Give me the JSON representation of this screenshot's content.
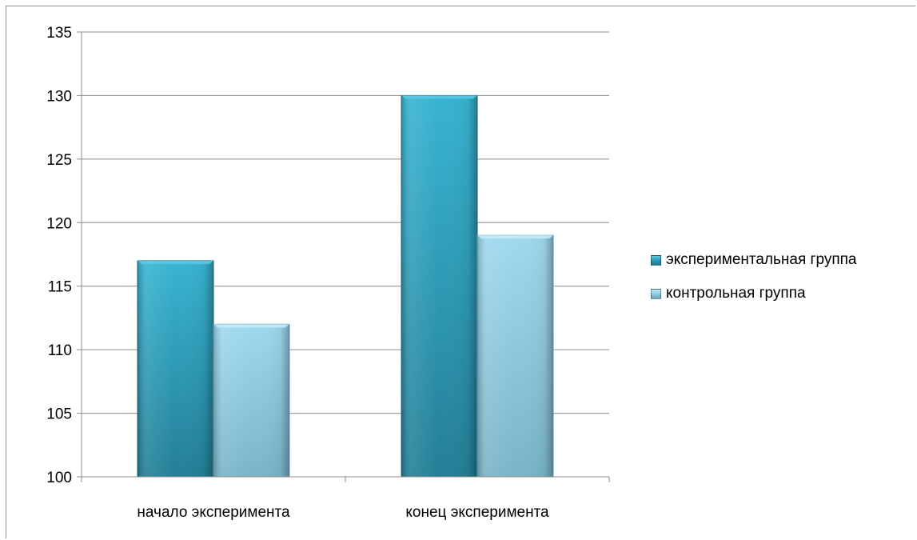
{
  "chart_data": {
    "type": "bar",
    "categories": [
      "начало эксперимента",
      "конец эксперимента"
    ],
    "series": [
      {
        "name": "экспериментальная группа",
        "values": [
          117,
          130
        ],
        "color": "#2e9cb8"
      },
      {
        "name": "контрольная группа",
        "values": [
          112,
          119
        ],
        "color": "#8ecfe6"
      }
    ],
    "ylim": [
      100,
      135
    ],
    "yticks": [
      "100",
      "105",
      "110",
      "115",
      "120",
      "125",
      "130",
      "135"
    ],
    "grid": true,
    "legend_position": "right"
  }
}
